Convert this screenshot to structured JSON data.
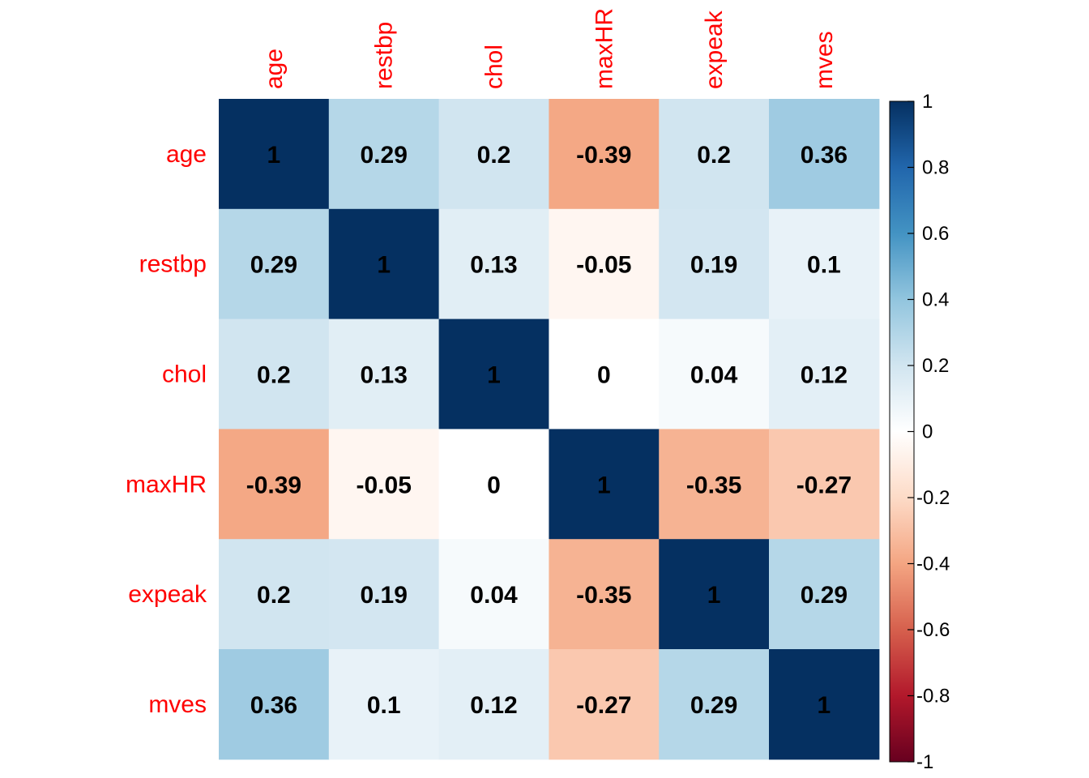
{
  "chart_data": {
    "type": "heatmap",
    "variables": [
      "age",
      "restbp",
      "chol",
      "maxHR",
      "expeak",
      "mves"
    ],
    "matrix": [
      [
        1,
        0.29,
        0.2,
        -0.39,
        0.2,
        0.36
      ],
      [
        0.29,
        1,
        0.13,
        -0.05,
        0.19,
        0.1
      ],
      [
        0.2,
        0.13,
        1,
        0,
        0.04,
        0.12
      ],
      [
        -0.39,
        -0.05,
        0,
        1,
        -0.35,
        -0.27
      ],
      [
        0.2,
        0.19,
        0.04,
        -0.35,
        1,
        0.29
      ],
      [
        0.36,
        0.1,
        0.12,
        -0.27,
        0.29,
        1
      ]
    ],
    "labels": [
      [
        "1",
        "0.29",
        "0.2",
        "-0.39",
        "0.2",
        "0.36"
      ],
      [
        "0.29",
        "1",
        "0.13",
        "-0.05",
        "0.19",
        "0.1"
      ],
      [
        "0.2",
        "0.13",
        "1",
        "0",
        "0.04",
        "0.12"
      ],
      [
        "-0.39",
        "-0.05",
        "0",
        "1",
        "-0.35",
        "-0.27"
      ],
      [
        "0.2",
        "0.19",
        "0.04",
        "-0.35",
        "1",
        "0.29"
      ],
      [
        "0.36",
        "0.1",
        "0.12",
        "-0.27",
        "0.29",
        "1"
      ]
    ],
    "colorbar": {
      "range": [
        -1,
        1
      ],
      "ticks": [
        "1",
        "0.8",
        "0.6",
        "0.4",
        "0.2",
        "0",
        "-0.2",
        "-0.4",
        "-0.6",
        "-0.8",
        "-1"
      ]
    },
    "label_color": "#FF0000",
    "palette": [
      "#67001F",
      "#B2182B",
      "#D6604D",
      "#F4A582",
      "#FDDBC7",
      "#FFFFFF",
      "#D1E5F0",
      "#92C5DE",
      "#4393C3",
      "#2166AC",
      "#053061"
    ],
    "title": "",
    "legend_position": "right"
  }
}
